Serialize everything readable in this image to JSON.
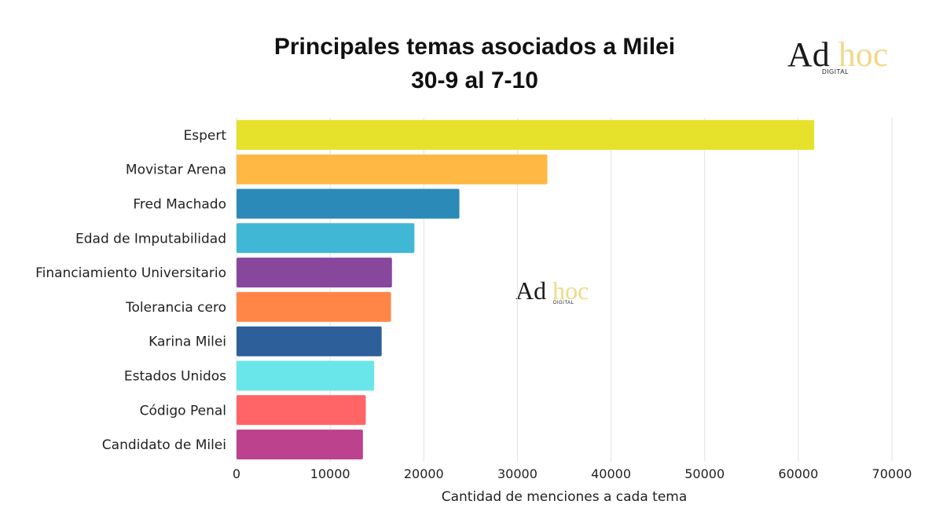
{
  "title_line1": "Principales temas asociados a Milei",
  "title_line2": "30-9 al 7-10",
  "logo": {
    "ad": "Ad",
    "hoc": "hoc",
    "sub": "DIGITAL"
  },
  "chart_data": {
    "type": "bar",
    "orientation": "horizontal",
    "title": "Principales temas asociados a Milei 30-9 al 7-10",
    "xlabel": "Cantidad de menciones a cada tema",
    "ylabel": "",
    "xlim": [
      0,
      70000
    ],
    "xticks": [
      0,
      10000,
      20000,
      30000,
      40000,
      50000,
      60000,
      70000
    ],
    "grid": "vertical",
    "categories": [
      "Espert",
      "Movistar Arena",
      "Fred Machado",
      "Edad de Imputabilidad",
      "Financiamiento Universitario",
      "Tolerancia cero",
      "Karina Milei",
      "Estados Unidos",
      "Código Penal",
      "Candidato de Milei"
    ],
    "values": [
      61700,
      33200,
      23800,
      19000,
      16600,
      16500,
      15500,
      14700,
      13800,
      13500
    ],
    "colors": [
      "#e6e22b",
      "#ffb843",
      "#2c8ab8",
      "#41b7d6",
      "#87479d",
      "#ff8646",
      "#2d5f9a",
      "#68e6e9",
      "#ff6467",
      "#bd428d"
    ]
  }
}
